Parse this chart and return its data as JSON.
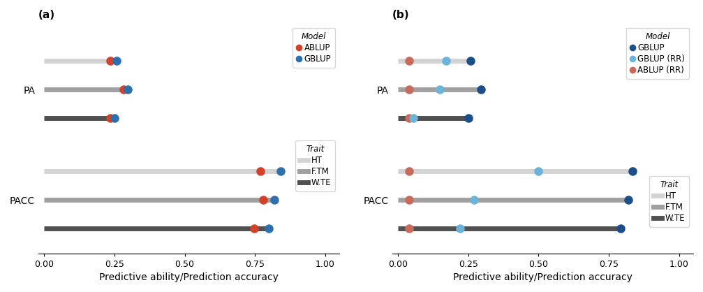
{
  "panel_a": {
    "title": "(a)",
    "trait_order": [
      "HT",
      "F.TM",
      "W.TE"
    ],
    "trait_colors": {
      "HT": "#d3d3d3",
      "F.TM": "#a0a0a0",
      "W.TE": "#505050"
    },
    "model_colors": {
      "ABLUP": "#d2412a",
      "GBLUP": "#2e6fad"
    },
    "pa_data": {
      "HT": {
        "line_start": 0.0,
        "ABLUP": 0.235,
        "GBLUP": 0.258
      },
      "F.TM": {
        "line_start": 0.0,
        "ABLUP": 0.282,
        "GBLUP": 0.298
      },
      "W.TE": {
        "line_start": 0.0,
        "ABLUP": 0.235,
        "GBLUP": 0.25
      }
    },
    "pacc_data": {
      "HT": {
        "line_start": 0.0,
        "ABLUP": 0.77,
        "GBLUP": 0.84
      },
      "F.TM": {
        "line_start": 0.0,
        "ABLUP": 0.778,
        "GBLUP": 0.818
      },
      "W.TE": {
        "line_start": 0.0,
        "ABLUP": 0.748,
        "GBLUP": 0.8
      }
    },
    "xlabel": "Predictive ability/Prediction accuracy",
    "xticks": [
      0.0,
      0.25,
      0.5,
      0.75,
      1.0
    ],
    "xlim": [
      -0.02,
      1.05
    ],
    "pa_y": {
      "HT": 2.35,
      "F.TM": 2.0,
      "W.TE": 1.65
    },
    "pacc_y": {
      "HT": 1.0,
      "F.TM": 0.65,
      "W.TE": 0.3
    },
    "ylim": [
      0.0,
      2.8
    ],
    "legend_model": [
      {
        "label": "ABLUP",
        "color": "#d2412a"
      },
      {
        "label": "GBLUP",
        "color": "#2e6fad"
      }
    ],
    "legend_trait": [
      {
        "label": "HT",
        "color": "#d3d3d3"
      },
      {
        "label": "F.TM",
        "color": "#a0a0a0"
      },
      {
        "label": "W.TE",
        "color": "#505050"
      }
    ]
  },
  "panel_b": {
    "title": "(b)",
    "trait_order": [
      "HT",
      "F.TM",
      "W.TE"
    ],
    "trait_colors": {
      "HT": "#d3d3d3",
      "F.TM": "#a0a0a0",
      "W.TE": "#505050"
    },
    "model_colors": {
      "GBLUP": "#1a4f8a",
      "GBLUP_RR": "#6db3d9",
      "ABLUP_RR": "#c96a5a"
    },
    "pa_data": {
      "HT": {
        "line_start": 0.0,
        "ABLUP_RR": 0.04,
        "GBLUP_RR": 0.17,
        "GBLUP": 0.258
      },
      "F.TM": {
        "line_start": 0.0,
        "ABLUP_RR": 0.04,
        "GBLUP_RR": 0.15,
        "GBLUP": 0.295
      },
      "W.TE": {
        "line_start": 0.0,
        "ABLUP_RR": 0.04,
        "GBLUP_RR": 0.055,
        "GBLUP": 0.25
      }
    },
    "pacc_data": {
      "HT": {
        "line_start": 0.0,
        "ABLUP_RR": 0.04,
        "GBLUP_RR": 0.5,
        "GBLUP": 0.835
      },
      "F.TM": {
        "line_start": 0.0,
        "ABLUP_RR": 0.04,
        "GBLUP_RR": 0.27,
        "GBLUP": 0.82
      },
      "W.TE": {
        "line_start": 0.0,
        "ABLUP_RR": 0.04,
        "GBLUP_RR": 0.22,
        "GBLUP": 0.792
      }
    },
    "xlabel": "Predictive ability/Prediction accuracy",
    "xticks": [
      0.0,
      0.25,
      0.5,
      0.75,
      1.0
    ],
    "xlim": [
      -0.02,
      1.05
    ],
    "pa_y": {
      "HT": 2.35,
      "F.TM": 2.0,
      "W.TE": 1.65
    },
    "pacc_y": {
      "HT": 1.0,
      "F.TM": 0.65,
      "W.TE": 0.3
    },
    "ylim": [
      0.0,
      2.8
    ],
    "legend_model": [
      {
        "label": "GBLUP",
        "color": "#1a4f8a"
      },
      {
        "label": "GBLUP (RR)",
        "color": "#6db3d9"
      },
      {
        "label": "ABLUP (RR)",
        "color": "#c96a5a"
      }
    ],
    "legend_trait": [
      {
        "label": "HT",
        "color": "#d3d3d3"
      },
      {
        "label": "F.TM",
        "color": "#a0a0a0"
      },
      {
        "label": "W.TE",
        "color": "#505050"
      }
    ]
  }
}
